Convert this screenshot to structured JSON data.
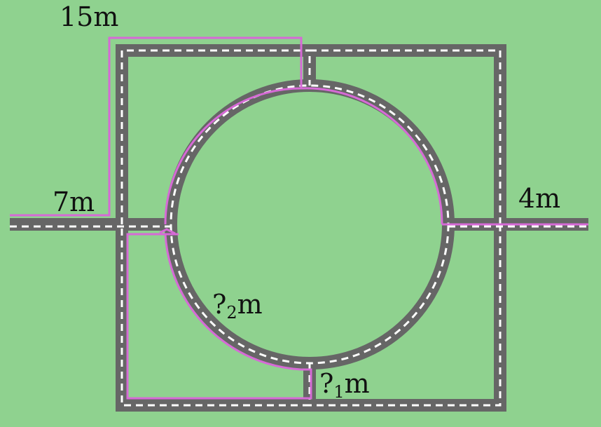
{
  "colors": {
    "background": "#8fd28f",
    "road": "#666666",
    "lane_marking": "#ffffff",
    "route": "#d66ad6",
    "label": "#111111"
  },
  "labels": {
    "top": "15m",
    "left": "7m",
    "right": "4m",
    "arc_q": "?",
    "arc_sub": "2",
    "arc_unit": "m",
    "bottom_q": "?",
    "bottom_sub": "1",
    "bottom_unit": "m"
  }
}
